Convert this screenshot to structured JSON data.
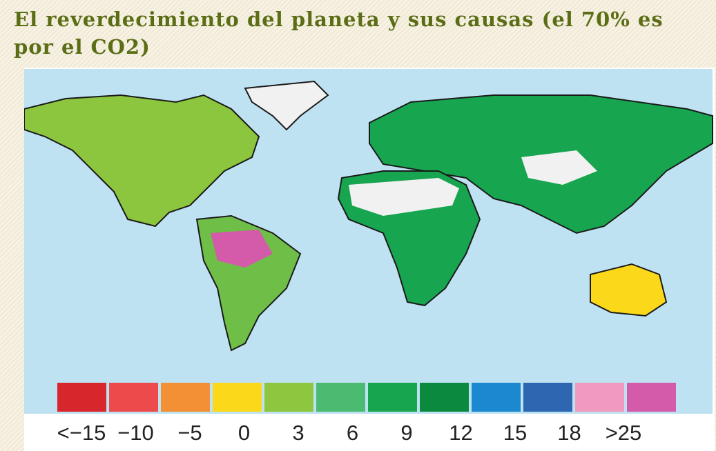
{
  "header": {
    "title": "El reverdecimiento del planeta y sus causas (el 70% es por el CO2)"
  },
  "legend": {
    "colors": [
      "#d7262c",
      "#ec4a4b",
      "#f39035",
      "#fbd91a",
      "#8fc63f",
      "#4bbb72",
      "#17a550",
      "#0b8a3f",
      "#1c88cf",
      "#2e66b1",
      "#f19ac0",
      "#d35ba9"
    ],
    "labels": [
      "<−15",
      "−10",
      "−5",
      "0",
      "3",
      "6",
      "9",
      "12",
      "15",
      "18",
      ">25"
    ]
  }
}
